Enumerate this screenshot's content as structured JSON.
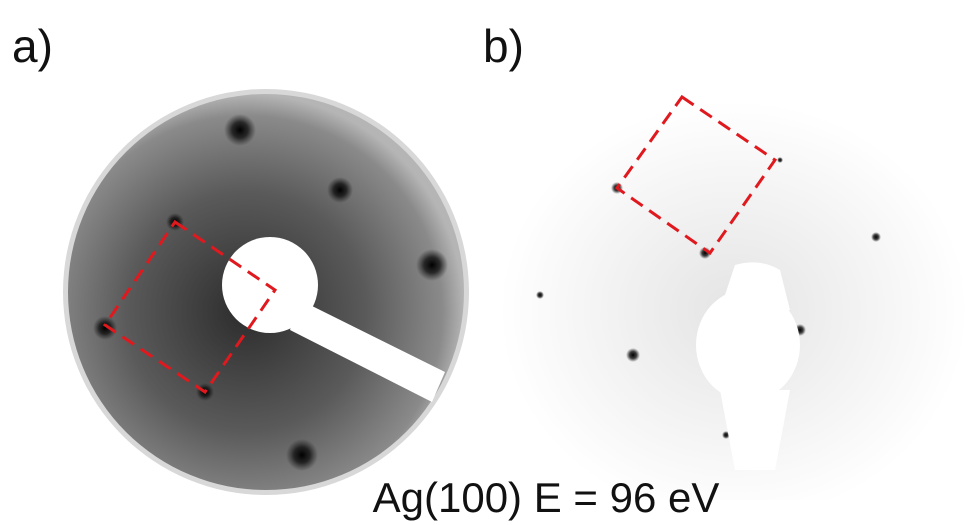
{
  "panels": [
    {
      "label": "a)"
    },
    {
      "label": "b)"
    }
  ],
  "caption": "Ag(100) E = 96 eV"
}
